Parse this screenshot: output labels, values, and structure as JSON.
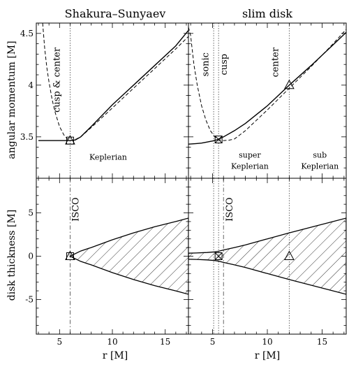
{
  "chart_data": [
    {
      "id": "ss-angmom",
      "type": "line",
      "title": "Shakura–Sunyaev",
      "xlabel": "",
      "ylabel": "angular momentum [M]",
      "xlim": [
        2.8,
        17.2
      ],
      "ylim": [
        3.1,
        4.6
      ],
      "xticks": [
        5,
        10,
        15
      ],
      "yticks": [
        3.5,
        4,
        4.5
      ],
      "vlines": [
        {
          "x": 6.0,
          "style": "dotted"
        }
      ],
      "series": [
        {
          "style": "solid",
          "x": [
            3.0,
            4.0,
            5.0,
            6.0,
            6.5,
            7.0,
            8.0,
            10.0,
            12.0,
            14.0,
            16.0,
            17.2
          ],
          "y": [
            3.464,
            3.464,
            3.464,
            3.464,
            3.47,
            3.5,
            3.6,
            3.81,
            4.0,
            4.19,
            4.38,
            4.53
          ]
        },
        {
          "style": "dashed",
          "x": [
            3.4,
            3.6,
            3.8,
            4.0,
            4.3,
            4.6,
            5.0,
            5.4,
            5.8,
            6.0,
            6.3,
            6.6,
            7.0,
            8.0,
            10.0,
            12.0,
            14.0,
            16.0,
            17.2
          ],
          "y": [
            4.6,
            4.35,
            4.17,
            4.03,
            3.86,
            3.73,
            3.6,
            3.52,
            3.475,
            3.464,
            3.468,
            3.48,
            3.5,
            3.59,
            3.78,
            3.97,
            4.16,
            4.35,
            4.47
          ]
        }
      ],
      "markers": [
        {
          "shape": "triangle",
          "x": 6.0,
          "y": 3.464
        },
        {
          "shape": "square",
          "x": 6.0,
          "y": 3.464
        }
      ],
      "annotations": [
        {
          "text": "cusp & center",
          "x": 5.0,
          "y": 4.05,
          "rotate": true
        },
        {
          "text": "Keplerian",
          "x": 9.6,
          "y": 3.28
        }
      ]
    },
    {
      "id": "slim-angmom",
      "type": "line",
      "title": "slim disk",
      "xlabel": "",
      "ylabel": "",
      "xlim": [
        2.8,
        17.2
      ],
      "ylim": [
        3.1,
        4.6
      ],
      "xticks": [
        5,
        10,
        15
      ],
      "yticks": [
        3.5,
        4,
        4.5
      ],
      "vlines": [
        {
          "x": 5.1,
          "style": "dotted"
        },
        {
          "x": 5.55,
          "style": "dotted"
        },
        {
          "x": 12.0,
          "style": "dotted"
        }
      ],
      "series": [
        {
          "style": "solid",
          "x": [
            2.8,
            3.5,
            4.0,
            4.5,
            5.0,
            5.5,
            6.0,
            7.0,
            8.0,
            10.0,
            12.0,
            14.0,
            16.0,
            17.2
          ],
          "y": [
            3.43,
            3.435,
            3.44,
            3.45,
            3.46,
            3.475,
            3.5,
            3.56,
            3.63,
            3.8,
            4.0,
            4.19,
            4.39,
            4.51
          ]
        },
        {
          "style": "dashed",
          "x": [
            2.8,
            3.0,
            3.3,
            3.6,
            4.0,
            4.4,
            4.8,
            5.2,
            5.5,
            6.0,
            6.5,
            7.0,
            8.0,
            10.0,
            12.0,
            14.0,
            16.0,
            17.2
          ],
          "y": [
            4.56,
            4.48,
            4.2,
            4.0,
            3.8,
            3.66,
            3.56,
            3.5,
            3.475,
            3.464,
            3.468,
            3.48,
            3.56,
            3.76,
            3.97,
            4.18,
            4.4,
            4.54
          ]
        }
      ],
      "markers": [
        {
          "shape": "square-x",
          "x": 5.55,
          "y": 3.475
        },
        {
          "shape": "triangle",
          "x": 12.0,
          "y": 4.0
        }
      ],
      "annotations": [
        {
          "text": "sonic",
          "x": 4.6,
          "y": 4.2,
          "rotate": true
        },
        {
          "text": "cusp",
          "x": 6.3,
          "y": 4.2,
          "rotate": true
        },
        {
          "text": "center",
          "x": 11.0,
          "y": 4.22,
          "rotate": true
        },
        {
          "text": "super",
          "x": 8.4,
          "y": 3.3
        },
        {
          "text": "Keplerian",
          "x": 8.4,
          "y": 3.19
        },
        {
          "text": "sub",
          "x": 14.8,
          "y": 3.3
        },
        {
          "text": "Keplerian",
          "x": 14.8,
          "y": 3.19
        }
      ]
    },
    {
      "id": "ss-thickness",
      "type": "area",
      "xlabel": "r [M]",
      "ylabel": "disk thickness [M]",
      "xlim": [
        2.8,
        17.2
      ],
      "ylim": [
        -9,
        9
      ],
      "xticks": [
        5,
        10,
        15
      ],
      "yticks": [
        -5,
        0,
        5
      ],
      "vlines": [
        {
          "x": 6.0,
          "style": "dashdot"
        }
      ],
      "series": [
        {
          "name": "upper",
          "x": [
            6.0,
            7.0,
            8.0,
            10.0,
            12.0,
            14.0,
            16.0,
            17.2
          ],
          "y": [
            0.0,
            0.6,
            1.0,
            1.9,
            2.7,
            3.4,
            4.0,
            4.4
          ]
        },
        {
          "name": "lower",
          "x": [
            6.0,
            7.0,
            8.0,
            10.0,
            12.0,
            14.0,
            16.0,
            17.2
          ],
          "y": [
            0.0,
            -0.6,
            -1.0,
            -1.9,
            -2.7,
            -3.4,
            -4.0,
            -4.4
          ]
        }
      ],
      "markers": [
        {
          "shape": "triangle",
          "x": 6.0,
          "y": 0.0
        },
        {
          "shape": "square",
          "x": 6.0,
          "y": 0.0
        }
      ],
      "annotations": [
        {
          "text": "ISCO",
          "x": 6.8,
          "y": 5.4,
          "rotate": true
        }
      ]
    },
    {
      "id": "slim-thickness",
      "type": "area",
      "xlabel": "r [M]",
      "ylabel": "",
      "xlim": [
        2.8,
        17.2
      ],
      "ylim": [
        -9,
        9
      ],
      "xticks": [
        5,
        10,
        15
      ],
      "yticks": [
        -5,
        0,
        5
      ],
      "vlines": [
        {
          "x": 5.1,
          "style": "dotted"
        },
        {
          "x": 5.55,
          "style": "dotted"
        },
        {
          "x": 6.0,
          "style": "dashdot"
        },
        {
          "x": 12.0,
          "style": "dotted"
        }
      ],
      "series": [
        {
          "name": "upper",
          "x": [
            2.8,
            3.5,
            4.5,
            5.2,
            5.6,
            6.0,
            7.0,
            8.0,
            10.0,
            12.0,
            14.0,
            16.0,
            17.2
          ],
          "y": [
            0.35,
            0.37,
            0.43,
            0.5,
            0.58,
            0.72,
            1.0,
            1.3,
            2.0,
            2.7,
            3.35,
            4.0,
            4.4
          ]
        },
        {
          "name": "lower",
          "x": [
            2.8,
            3.5,
            4.5,
            5.2,
            5.6,
            6.0,
            7.0,
            8.0,
            10.0,
            12.0,
            14.0,
            16.0,
            17.2
          ],
          "y": [
            -0.35,
            -0.37,
            -0.43,
            -0.5,
            -0.58,
            -0.72,
            -1.0,
            -1.3,
            -2.0,
            -2.7,
            -3.35,
            -4.0,
            -4.4
          ]
        }
      ],
      "markers": [
        {
          "shape": "square-x",
          "x": 5.55,
          "y": 0.0
        },
        {
          "shape": "triangle",
          "x": 12.0,
          "y": 0.0
        }
      ],
      "annotations": [
        {
          "text": "ISCO",
          "x": 6.8,
          "y": 5.4,
          "rotate": true
        }
      ]
    }
  ]
}
